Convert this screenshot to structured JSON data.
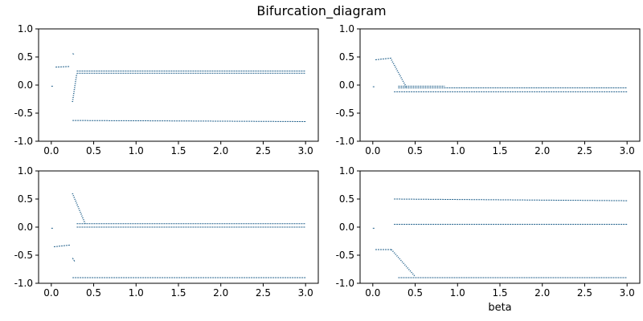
{
  "figure": {
    "title": "Bifurcation_diagram"
  },
  "colors": {
    "points": "#1f5f8a",
    "axes": "#000000",
    "background": "#ffffff"
  },
  "chart_data": [
    {
      "type": "scatter",
      "panel": "top-left",
      "xlabel": "",
      "ylabel": "",
      "xlim": [
        -0.15,
        3.15
      ],
      "ylim": [
        -1.0,
        1.0
      ],
      "xticks": [
        "0.0",
        "0.5",
        "1.0",
        "1.5",
        "2.0",
        "2.5",
        "3.0"
      ],
      "yticks": [
        "-1.0",
        "-0.5",
        "0.0",
        "0.5",
        "1.0"
      ],
      "grid": false,
      "branches": [
        {
          "x": [
            0.0,
            0.02
          ],
          "y": [
            -0.02,
            -0.02
          ]
        },
        {
          "x": [
            0.05,
            0.22
          ],
          "y": [
            0.32,
            0.33
          ]
        },
        {
          "x": [
            0.25,
            0.27
          ],
          "y": [
            0.56,
            0.55
          ]
        },
        {
          "x": [
            0.25,
            0.3
          ],
          "y": [
            -0.3,
            0.2
          ]
        },
        {
          "x": [
            0.3,
            3.0
          ],
          "y": [
            0.25,
            0.25
          ]
        },
        {
          "x": [
            0.3,
            3.0
          ],
          "y": [
            0.21,
            0.21
          ]
        },
        {
          "x": [
            0.25,
            3.0
          ],
          "y": [
            -0.63,
            -0.65
          ]
        }
      ]
    },
    {
      "type": "scatter",
      "panel": "top-right",
      "xlabel": "",
      "ylabel": "",
      "xlim": [
        -0.15,
        3.15
      ],
      "ylim": [
        -1.0,
        1.0
      ],
      "xticks": [
        "0.0",
        "0.5",
        "1.0",
        "1.5",
        "2.0",
        "2.5",
        "3.0"
      ],
      "yticks": [
        "-1.0",
        "-0.5",
        "0.0",
        "0.5",
        "1.0"
      ],
      "grid": false,
      "branches": [
        {
          "x": [
            0.0,
            0.02
          ],
          "y": [
            -0.03,
            -0.03
          ]
        },
        {
          "x": [
            0.03,
            0.22
          ],
          "y": [
            0.45,
            0.48
          ]
        },
        {
          "x": [
            0.22,
            0.4
          ],
          "y": [
            0.45,
            -0.05
          ]
        },
        {
          "x": [
            0.3,
            0.85
          ],
          "y": [
            -0.02,
            -0.02
          ]
        },
        {
          "x": [
            0.3,
            3.0
          ],
          "y": [
            -0.05,
            -0.05
          ]
        },
        {
          "x": [
            0.25,
            3.0
          ],
          "y": [
            -0.12,
            -0.12
          ]
        }
      ]
    },
    {
      "type": "scatter",
      "panel": "bottom-left",
      "xlabel": "",
      "ylabel": "",
      "xlim": [
        -0.15,
        3.15
      ],
      "ylim": [
        -1.0,
        1.0
      ],
      "xticks": [
        "0.0",
        "0.5",
        "1.0",
        "1.5",
        "2.0",
        "2.5",
        "3.0"
      ],
      "yticks": [
        "-1.0",
        "-0.5",
        "0.0",
        "0.5",
        "1.0"
      ],
      "grid": false,
      "branches": [
        {
          "x": [
            0.0,
            0.02
          ],
          "y": [
            -0.02,
            -0.02
          ]
        },
        {
          "x": [
            0.03,
            0.22
          ],
          "y": [
            -0.35,
            -0.32
          ]
        },
        {
          "x": [
            0.25,
            0.28
          ],
          "y": [
            -0.55,
            -0.62
          ]
        },
        {
          "x": [
            0.25,
            0.4
          ],
          "y": [
            0.6,
            0.06
          ]
        },
        {
          "x": [
            0.3,
            3.0
          ],
          "y": [
            0.06,
            0.06
          ]
        },
        {
          "x": [
            0.3,
            3.0
          ],
          "y": [
            0.0,
            0.0
          ]
        },
        {
          "x": [
            0.25,
            3.0
          ],
          "y": [
            -0.9,
            -0.9
          ]
        }
      ]
    },
    {
      "type": "scatter",
      "panel": "bottom-right",
      "xlabel": "beta",
      "ylabel": "",
      "xlim": [
        -0.15,
        3.15
      ],
      "ylim": [
        -1.0,
        1.0
      ],
      "xticks": [
        "0.0",
        "0.5",
        "1.0",
        "1.5",
        "2.0",
        "2.5",
        "3.0"
      ],
      "yticks": [
        "-1.0",
        "-0.5",
        "0.0",
        "0.5",
        "1.0"
      ],
      "grid": false,
      "branches": [
        {
          "x": [
            0.0,
            0.02
          ],
          "y": [
            -0.02,
            -0.02
          ]
        },
        {
          "x": [
            0.03,
            0.22
          ],
          "y": [
            -0.4,
            -0.4
          ]
        },
        {
          "x": [
            0.25,
            3.0
          ],
          "y": [
            0.5,
            0.47
          ]
        },
        {
          "x": [
            0.25,
            3.0
          ],
          "y": [
            0.05,
            0.05
          ]
        },
        {
          "x": [
            0.22,
            0.5
          ],
          "y": [
            -0.4,
            -0.88
          ]
        },
        {
          "x": [
            0.3,
            3.0
          ],
          "y": [
            -0.9,
            -0.9
          ]
        }
      ]
    }
  ]
}
